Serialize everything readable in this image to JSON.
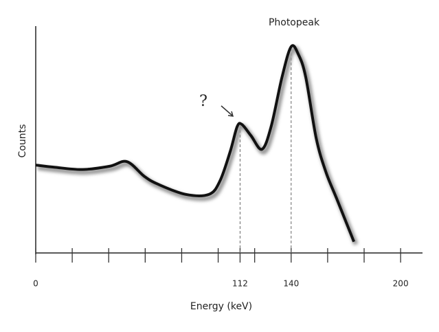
{
  "chart_data": {
    "type": "line",
    "title": "Photopeak",
    "annotation": "?",
    "xlabel": "Energy (keV)",
    "ylabel": "Counts",
    "x": [
      0,
      10.5,
      25.6,
      40.7,
      50,
      59.5,
      67,
      82,
      95,
      101,
      106.6,
      110.4,
      113,
      118,
      124,
      129,
      135,
      140,
      144,
      148,
      153.7,
      159,
      165,
      174.4
    ],
    "series": [
      {
        "name": "Counts",
        "color": "#111111",
        "values": [
          39,
          38,
          37,
          38.5,
          40.5,
          34,
          30.5,
          26,
          26,
          32,
          45,
          56,
          57,
          52,
          46,
          56,
          78,
          91.5,
          88,
          78,
          51,
          36,
          24,
          5
        ]
      }
    ],
    "xlim": [
      0,
      212
    ],
    "ylim": [
      0,
      100
    ],
    "xticks": [
      0,
      112,
      140,
      200
    ],
    "xminorticks": [
      20,
      40,
      60,
      80,
      100,
      120,
      160,
      180
    ],
    "markers": [
      112,
      140
    ]
  }
}
